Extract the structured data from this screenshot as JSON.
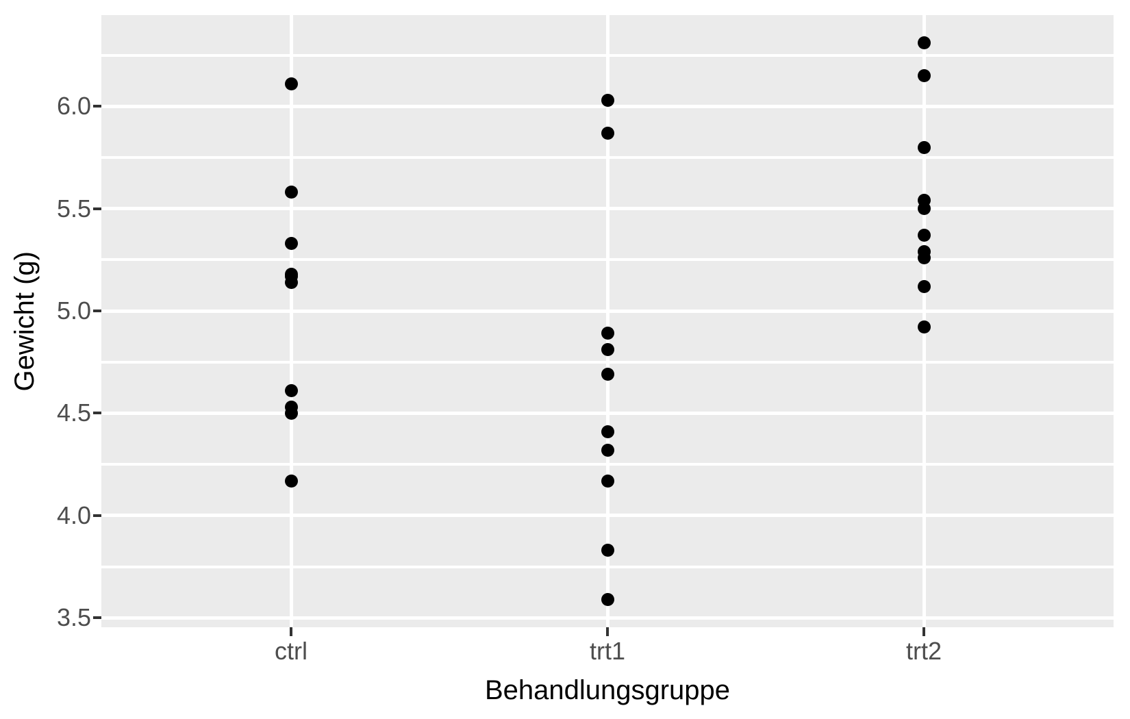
{
  "chart_data": {
    "type": "scatter",
    "title": "",
    "xlabel": "Behandlungsgruppe",
    "ylabel": "Gewicht (g)",
    "categories": [
      "ctrl",
      "trt1",
      "trt2"
    ],
    "series": [
      {
        "name": "ctrl",
        "values": [
          4.17,
          5.58,
          5.18,
          6.11,
          4.5,
          4.61,
          5.17,
          4.53,
          5.33,
          5.14
        ]
      },
      {
        "name": "trt1",
        "values": [
          4.81,
          4.17,
          4.41,
          3.59,
          5.87,
          3.83,
          6.03,
          4.89,
          4.32,
          4.69
        ]
      },
      {
        "name": "trt2",
        "values": [
          6.31,
          5.12,
          5.54,
          5.5,
          5.37,
          5.29,
          4.92,
          6.15,
          5.8,
          5.26
        ]
      }
    ],
    "x_tick_labels": [
      "ctrl",
      "trt1",
      "trt2"
    ],
    "y_tick_labels": [
      "6.0",
      "5.5",
      "5.0",
      "4.5",
      "4.0",
      "3.5"
    ],
    "y_ticks": [
      6.0,
      5.5,
      5.0,
      4.5,
      4.0,
      3.5
    ],
    "y_minor_ticks": [
      6.25,
      5.75,
      5.25,
      4.75,
      4.25,
      3.75
    ],
    "ylim": [
      3.454,
      6.446
    ],
    "grid": true,
    "legend": false,
    "style": {
      "panel_background": "#EBEBEB",
      "gridline_color": "#FFFFFF",
      "point_color": "#000000",
      "tick_label_color": "#4D4D4D",
      "axis_title_color": "#000000",
      "tick_mark_color": "#333333"
    }
  }
}
